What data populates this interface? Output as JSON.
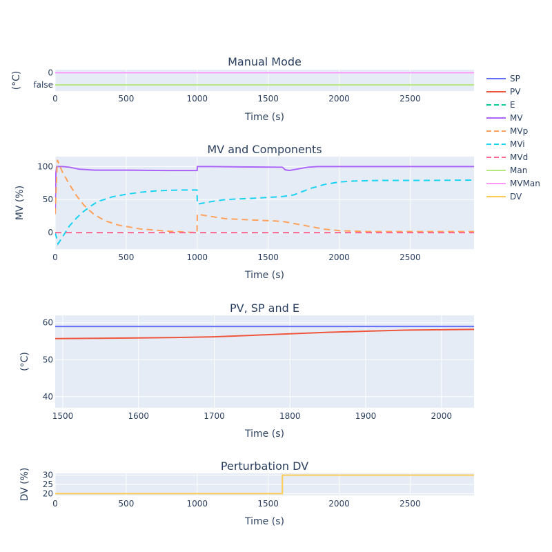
{
  "legend": [
    {
      "name": "SP",
      "color": "#636efa",
      "dash": false
    },
    {
      "name": "PV",
      "color": "#ef553b",
      "dash": false
    },
    {
      "name": "E",
      "color": "#00cc96",
      "dash": true
    },
    {
      "name": "MV",
      "color": "#ab63fa",
      "dash": false
    },
    {
      "name": "MVp",
      "color": "#ffa15a",
      "dash": true
    },
    {
      "name": "MVi",
      "color": "#19d3f3",
      "dash": true
    },
    {
      "name": "MVd",
      "color": "#ff6692",
      "dash": true
    },
    {
      "name": "Man",
      "color": "#b6e880",
      "dash": false
    },
    {
      "name": "MVMan",
      "color": "#ff97ff",
      "dash": false
    },
    {
      "name": "DV",
      "color": "#fecb52",
      "dash": false
    }
  ],
  "chart_data": [
    {
      "type": "line",
      "title": "Manual Mode",
      "xlabel": "Time (s)",
      "ylabel": "(°C)",
      "xlim": [
        0,
        2950
      ],
      "xticks": [
        0,
        500,
        1000,
        1500,
        2000,
        2500
      ],
      "ylim": [
        -0.5,
        1.25
      ],
      "yticks": [
        {
          "v": 0,
          "label": "false"
        },
        {
          "v": 1,
          "label": "0"
        }
      ],
      "series": [
        {
          "name": "Man",
          "color": "#b6e880",
          "dash": false,
          "x": [
            0,
            2950
          ],
          "y": [
            0,
            0
          ]
        },
        {
          "name": "MVMan",
          "color": "#ff97ff",
          "dash": false,
          "x": [
            0,
            2950
          ],
          "y": [
            1,
            1
          ]
        }
      ]
    },
    {
      "type": "line",
      "title": "MV and Components",
      "xlabel": "Time (s)",
      "ylabel": "MV (%)",
      "xlim": [
        0,
        2950
      ],
      "xticks": [
        0,
        500,
        1000,
        1500,
        2000,
        2500
      ],
      "ylim": [
        -25,
        115
      ],
      "yticks": [
        {
          "v": 0,
          "label": "0"
        },
        {
          "v": 50,
          "label": "50"
        },
        {
          "v": 100,
          "label": "100"
        }
      ],
      "series": [
        {
          "name": "MV",
          "color": "#ab63fa",
          "dash": false,
          "x": [
            0,
            5,
            10,
            50,
            100,
            170,
            280,
            500,
            800,
            1000,
            1001,
            1100,
            1300,
            1600,
            1620,
            1650,
            1700,
            1780,
            1850,
            2000,
            2950
          ],
          "y": [
            28,
            90,
            100,
            100,
            99,
            96,
            94.5,
            94.5,
            94,
            94,
            100,
            100,
            99.5,
            99,
            95,
            94,
            96,
            99,
            100,
            100,
            100
          ]
        },
        {
          "name": "MVp",
          "color": "#ffa15a",
          "dash": true,
          "x": [
            0,
            15,
            50,
            100,
            150,
            200,
            270,
            350,
            450,
            600,
            800,
            950,
            999,
            1001,
            1050,
            1200,
            1400,
            1600,
            1700,
            1800,
            1900,
            2000,
            2200,
            2950
          ],
          "y": [
            28,
            110,
            92,
            73,
            56,
            42,
            28,
            18,
            11,
            5.5,
            2,
            0.5,
            0,
            28,
            26,
            21,
            19,
            17,
            13,
            9,
            5,
            3,
            1.5,
            1.5
          ]
        },
        {
          "name": "MVi",
          "color": "#19d3f3",
          "dash": true,
          "x": [
            0,
            20,
            50,
            100,
            150,
            200,
            250,
            300,
            400,
            500,
            600,
            700,
            800,
            900,
            999,
            1001,
            1100,
            1200,
            1400,
            1600,
            1680,
            1800,
            1900,
            2000,
            2100,
            2300,
            2600,
            2950
          ],
          "y": [
            0,
            -17,
            -7,
            10,
            22,
            32,
            40,
            47,
            54,
            58,
            61,
            63,
            64,
            64.5,
            64.5,
            43,
            47,
            50,
            52,
            54.5,
            57,
            67,
            73,
            76.5,
            78,
            79,
            79,
            79.5
          ]
        },
        {
          "name": "MVd",
          "color": "#ff6692",
          "dash": true,
          "x": [
            0,
            2950
          ],
          "y": [
            0,
            0
          ]
        }
      ]
    },
    {
      "type": "line",
      "title": "PV, SP and E",
      "xlabel": "Time (s)",
      "ylabel": "(°C)",
      "xlim": [
        1490,
        2043
      ],
      "xticks": [
        1500,
        1600,
        1700,
        1800,
        1900,
        2000
      ],
      "ylim": [
        37,
        62
      ],
      "yticks": [
        {
          "v": 40,
          "label": "40"
        },
        {
          "v": 50,
          "label": "50"
        },
        {
          "v": 60,
          "label": "60"
        }
      ],
      "series": [
        {
          "name": "SP",
          "color": "#636efa",
          "dash": false,
          "x": [
            1490,
            2043
          ],
          "y": [
            59,
            59
          ]
        },
        {
          "name": "PV",
          "color": "#ef553b",
          "dash": false,
          "x": [
            1490,
            1550,
            1600,
            1650,
            1700,
            1750,
            1800,
            1850,
            1900,
            1950,
            2000,
            2043
          ],
          "y": [
            55.7,
            55.8,
            55.9,
            56.0,
            56.2,
            56.6,
            57.0,
            57.4,
            57.7,
            58.0,
            58.1,
            58.2
          ]
        }
      ]
    },
    {
      "type": "line",
      "title": "Perturbation DV",
      "xlabel": "Time (s)",
      "ylabel": "DV (%)",
      "xlim": [
        0,
        2950
      ],
      "xticks": [
        0,
        500,
        1000,
        1500,
        2000,
        2500
      ],
      "ylim": [
        19,
        31
      ],
      "yticks": [
        {
          "v": 20,
          "label": "20"
        },
        {
          "v": 25,
          "label": "25"
        },
        {
          "v": 30,
          "label": "30"
        }
      ],
      "series": [
        {
          "name": "DV",
          "color": "#fecb52",
          "dash": false,
          "x": [
            0,
            1600,
            1600,
            2950
          ],
          "y": [
            20,
            20,
            30,
            30
          ]
        }
      ]
    }
  ]
}
